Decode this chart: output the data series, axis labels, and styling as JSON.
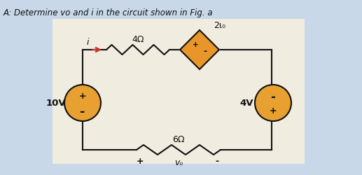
{
  "title_text": "A: Determine vo and i in the circuit shown in Fig. a",
  "bg_color": "#c8d8e8",
  "circuit_bg": "#f0ece0",
  "text_color": "#111111",
  "resistor_4": "4Ω",
  "resistor_6": "6Ω",
  "diamond_label": "2ι₀",
  "source_left_label": "10V",
  "source_right_label": "4V",
  "current_label": "i",
  "vo_label": "vₒ",
  "plus_sign": "+",
  "minus_sign": "-",
  "diamond_color": "#e8952a",
  "source_color": "#e8a030",
  "arrow_color": "#cc3333"
}
